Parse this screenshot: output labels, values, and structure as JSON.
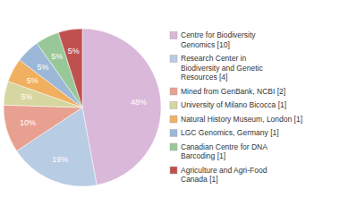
{
  "chart_data": {
    "type": "pie",
    "categories": [
      "Centre for Biodiversity\nGenomics [10]",
      "Research Center in\nBiodiversity and Genetic\nResources [4]",
      "Mined from GenBank, NCBI [2]",
      "University of Milano Bicocca [1]",
      "Natural History Museum, London [1]",
      "LGC Genomics, Germany [1]",
      "Canadian Centre for DNA\nBarcoding [1]",
      "Agriculture and Agri-Food\nCanada [1]"
    ],
    "values": [
      48,
      19,
      10,
      5,
      5,
      5,
      5,
      5
    ],
    "value_labels": [
      "48%",
      "19%",
      "10%",
      "5%",
      "5%",
      "5%",
      "5%",
      "5%"
    ],
    "colors": [
      "#d9b8d9",
      "#b8cce4",
      "#e8a090",
      "#d6d6a0",
      "#f0b060",
      "#9bb8d9",
      "#98c898",
      "#c0504d"
    ],
    "data_labels": true,
    "legend": "right"
  }
}
